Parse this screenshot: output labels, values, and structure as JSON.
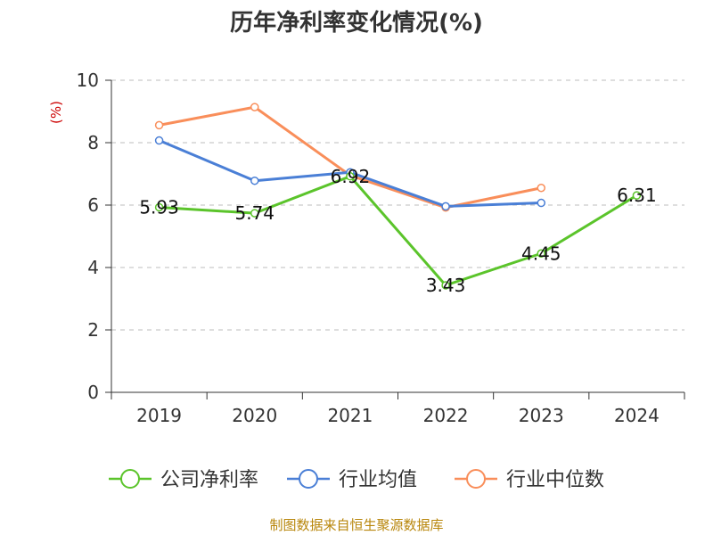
{
  "chart_data": {
    "type": "line",
    "title": "历年净利率变化情况(%)",
    "ylabel": "(%)",
    "xlabel": "",
    "ylim": [
      0,
      10
    ],
    "yticks": [
      0,
      2,
      4,
      6,
      8,
      10
    ],
    "categories": [
      "2019",
      "2020",
      "2021",
      "2022",
      "2023",
      "2024"
    ],
    "grid": true,
    "legend_position": "bottom",
    "series": [
      {
        "name": "公司净利率",
        "color": "#5bc42b",
        "values": [
          5.93,
          5.74,
          6.92,
          3.43,
          4.45,
          6.31
        ],
        "labels": [
          "5.93",
          "5.74",
          "6.92",
          "3.43",
          "4.45",
          "6.31"
        ]
      },
      {
        "name": "行业均值",
        "color": "#4a7fd6",
        "values": [
          8.07,
          6.78,
          7.05,
          5.96,
          6.07,
          null
        ]
      },
      {
        "name": "行业中位数",
        "color": "#f98e5a",
        "values": [
          8.56,
          9.14,
          6.95,
          5.92,
          6.55,
          null
        ]
      }
    ],
    "source": "制图数据来自恒生聚源数据库"
  }
}
